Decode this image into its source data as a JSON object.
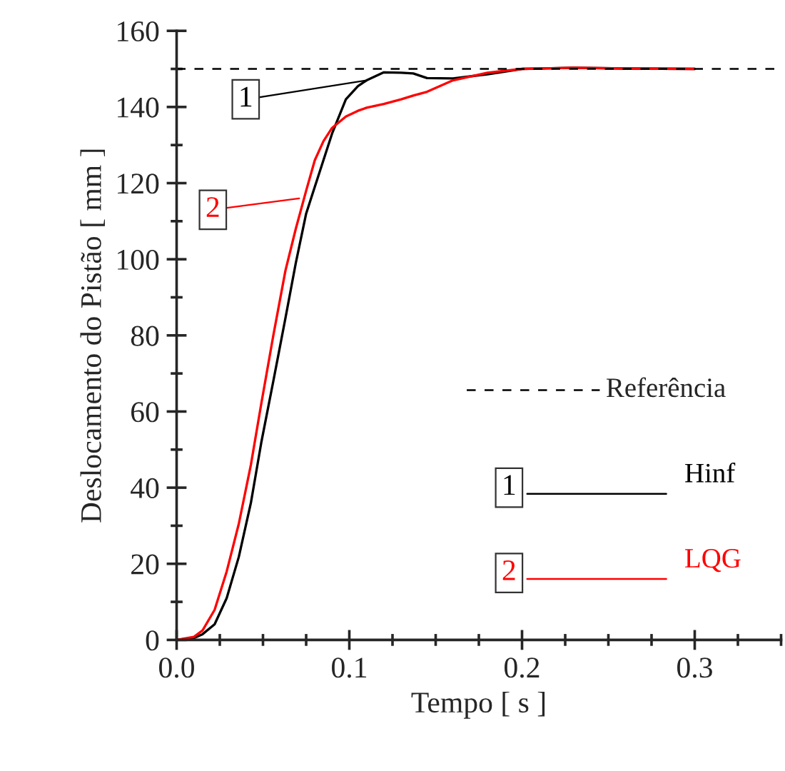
{
  "chart_data": {
    "type": "line",
    "xlabel": "Tempo [ s ]",
    "ylabel": "Deslocamento do Pistão [ mm ]",
    "x": [
      0,
      0.01,
      0.015,
      0.022,
      0.029,
      0.036,
      0.043,
      0.049,
      0.056,
      0.063,
      0.069,
      0.075,
      0.08,
      0.085,
      0.09,
      0.098,
      0.105,
      0.11,
      0.12,
      0.13,
      0.137,
      0.145,
      0.16,
      0.18,
      0.2,
      0.23,
      0.26,
      0.3
    ],
    "series": [
      {
        "name": "Hinf",
        "color": "#000000",
        "values": [
          0,
          0.5,
          1.5,
          4.1,
          11,
          21.8,
          36,
          51.8,
          68,
          84.5,
          99,
          112,
          119,
          126,
          133,
          142,
          145.5,
          147,
          149.1,
          149,
          148.8,
          147.6,
          147.5,
          148.6,
          150,
          150.3,
          150.1,
          150
        ]
      },
      {
        "name": "LQG",
        "color": "#ff0000",
        "values": [
          0,
          0.8,
          2.5,
          7.9,
          18,
          30.5,
          46,
          62,
          80,
          97,
          108,
          118,
          126,
          131,
          134.5,
          137.5,
          139,
          139.8,
          140.8,
          142,
          143,
          144,
          147,
          149,
          150,
          150.3,
          150.1,
          150
        ]
      }
    ],
    "xlim": [
      0,
      0.35
    ],
    "ylim": [
      0,
      160
    ],
    "xticks": [
      {
        "value": 0,
        "label": "0.0"
      },
      {
        "value": 0.1,
        "label": "0.1"
      },
      {
        "value": 0.2,
        "label": "0.2"
      },
      {
        "value": 0.3,
        "label": "0.3"
      }
    ],
    "yticks": [
      0,
      20,
      40,
      60,
      80,
      100,
      120,
      140,
      160
    ],
    "ref_lines": [
      {
        "axis": "y",
        "value": 150,
        "label": "Referência",
        "line_style": "dashed",
        "color": "#000000"
      }
    ],
    "annotations": [
      {
        "text": "1",
        "x": 0.11,
        "y": 147
      },
      {
        "text": "2",
        "x": 0.071,
        "y": 116
      }
    ],
    "legend": "right",
    "grid": false,
    "marker": "none",
    "line_style": "solid"
  }
}
